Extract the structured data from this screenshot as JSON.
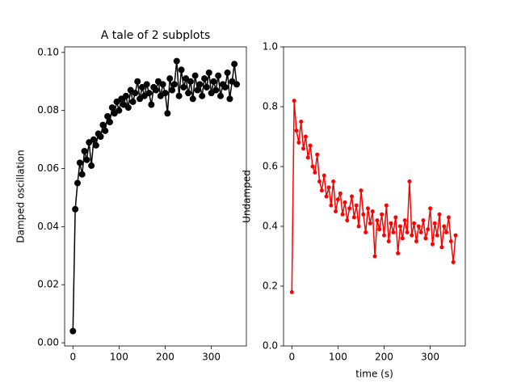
{
  "chart_data": [
    {
      "type": "line",
      "title": "A tale of 2 subplots",
      "y_label": "Damped oscillation",
      "marker": "o",
      "marker_size": 4,
      "x": [
        0,
        5,
        10,
        15,
        20,
        25,
        30,
        35,
        40,
        45,
        50,
        55,
        60,
        65,
        70,
        75,
        80,
        85,
        90,
        95,
        100,
        105,
        110,
        115,
        120,
        125,
        130,
        135,
        140,
        145,
        150,
        155,
        160,
        165,
        170,
        175,
        180,
        185,
        190,
        195,
        200,
        205,
        210,
        215,
        220,
        225,
        230,
        235,
        240,
        245,
        250,
        255,
        260,
        265,
        270,
        275,
        280,
        285,
        290,
        295,
        300,
        305,
        310,
        315,
        320,
        325,
        330,
        335,
        340,
        345,
        350,
        355
      ],
      "series": [
        {
          "color": "#000000",
          "values": [
            0.004,
            0.046,
            0.055,
            0.062,
            0.058,
            0.066,
            0.063,
            0.069,
            0.061,
            0.07,
            0.068,
            0.072,
            0.071,
            0.075,
            0.073,
            0.078,
            0.076,
            0.081,
            0.079,
            0.083,
            0.08,
            0.084,
            0.082,
            0.085,
            0.081,
            0.087,
            0.083,
            0.086,
            0.09,
            0.084,
            0.088,
            0.085,
            0.089,
            0.086,
            0.082,
            0.088,
            0.087,
            0.09,
            0.085,
            0.089,
            0.086,
            0.079,
            0.091,
            0.087,
            0.089,
            0.097,
            0.085,
            0.094,
            0.088,
            0.091,
            0.086,
            0.09,
            0.084,
            0.092,
            0.087,
            0.089,
            0.085,
            0.091,
            0.088,
            0.093,
            0.086,
            0.09,
            0.087,
            0.092,
            0.085,
            0.089,
            0.088,
            0.093,
            0.084,
            0.09,
            0.096,
            0.089
          ]
        }
      ],
      "xlim": [
        -18,
        376
      ],
      "ylim": [
        -0.0011,
        0.1019
      ],
      "xticks": [
        0,
        100,
        200,
        300
      ],
      "yticks": [
        {
          "value": 0,
          "label": "0.00"
        },
        {
          "value": 0.02,
          "label": "0.02"
        },
        {
          "value": 0.04,
          "label": "0.04"
        },
        {
          "value": 0.06,
          "label": "0.06"
        },
        {
          "value": 0.08,
          "label": "0.08"
        },
        {
          "value": 0.1,
          "label": "0.10"
        }
      ]
    },
    {
      "type": "line",
      "x_label": "time (s)",
      "y_label": "Undamped",
      "marker": "o",
      "marker_size": 2.5,
      "x": [
        0,
        5,
        10,
        15,
        20,
        25,
        30,
        35,
        40,
        45,
        50,
        55,
        60,
        65,
        70,
        75,
        80,
        85,
        90,
        95,
        100,
        105,
        110,
        115,
        120,
        125,
        130,
        135,
        140,
        145,
        150,
        155,
        160,
        165,
        170,
        175,
        180,
        185,
        190,
        195,
        200,
        205,
        210,
        215,
        220,
        225,
        230,
        235,
        240,
        245,
        250,
        255,
        260,
        265,
        270,
        275,
        280,
        285,
        290,
        295,
        300,
        305,
        310,
        315,
        320,
        325,
        330,
        335,
        340,
        345,
        350,
        355
      ],
      "series": [
        {
          "color": "#ff0000",
          "values": [
            0.18,
            0.82,
            0.72,
            0.68,
            0.75,
            0.66,
            0.7,
            0.63,
            0.67,
            0.6,
            0.58,
            0.64,
            0.55,
            0.52,
            0.57,
            0.5,
            0.53,
            0.47,
            0.55,
            0.45,
            0.49,
            0.51,
            0.44,
            0.48,
            0.42,
            0.46,
            0.5,
            0.43,
            0.47,
            0.4,
            0.52,
            0.44,
            0.38,
            0.46,
            0.41,
            0.45,
            0.3,
            0.42,
            0.39,
            0.44,
            0.37,
            0.47,
            0.35,
            0.41,
            0.38,
            0.43,
            0.31,
            0.4,
            0.36,
            0.42,
            0.38,
            0.55,
            0.37,
            0.41,
            0.35,
            0.4,
            0.38,
            0.42,
            0.36,
            0.39,
            0.46,
            0.34,
            0.41,
            0.37,
            0.44,
            0.33,
            0.4,
            0.38,
            0.43,
            0.35,
            0.28,
            0.37
          ]
        }
      ],
      "xlim": [
        -18,
        376
      ],
      "ylim": [
        0,
        1
      ],
      "xticks": [
        0,
        100,
        200,
        300
      ],
      "yticks": [
        {
          "value": 0,
          "label": "0.0"
        },
        {
          "value": 0.2,
          "label": "0.2"
        },
        {
          "value": 0.4,
          "label": "0.4"
        },
        {
          "value": 0.6,
          "label": "0.6"
        },
        {
          "value": 0.8,
          "label": "0.8"
        },
        {
          "value": 1,
          "label": "1.0"
        }
      ]
    }
  ]
}
